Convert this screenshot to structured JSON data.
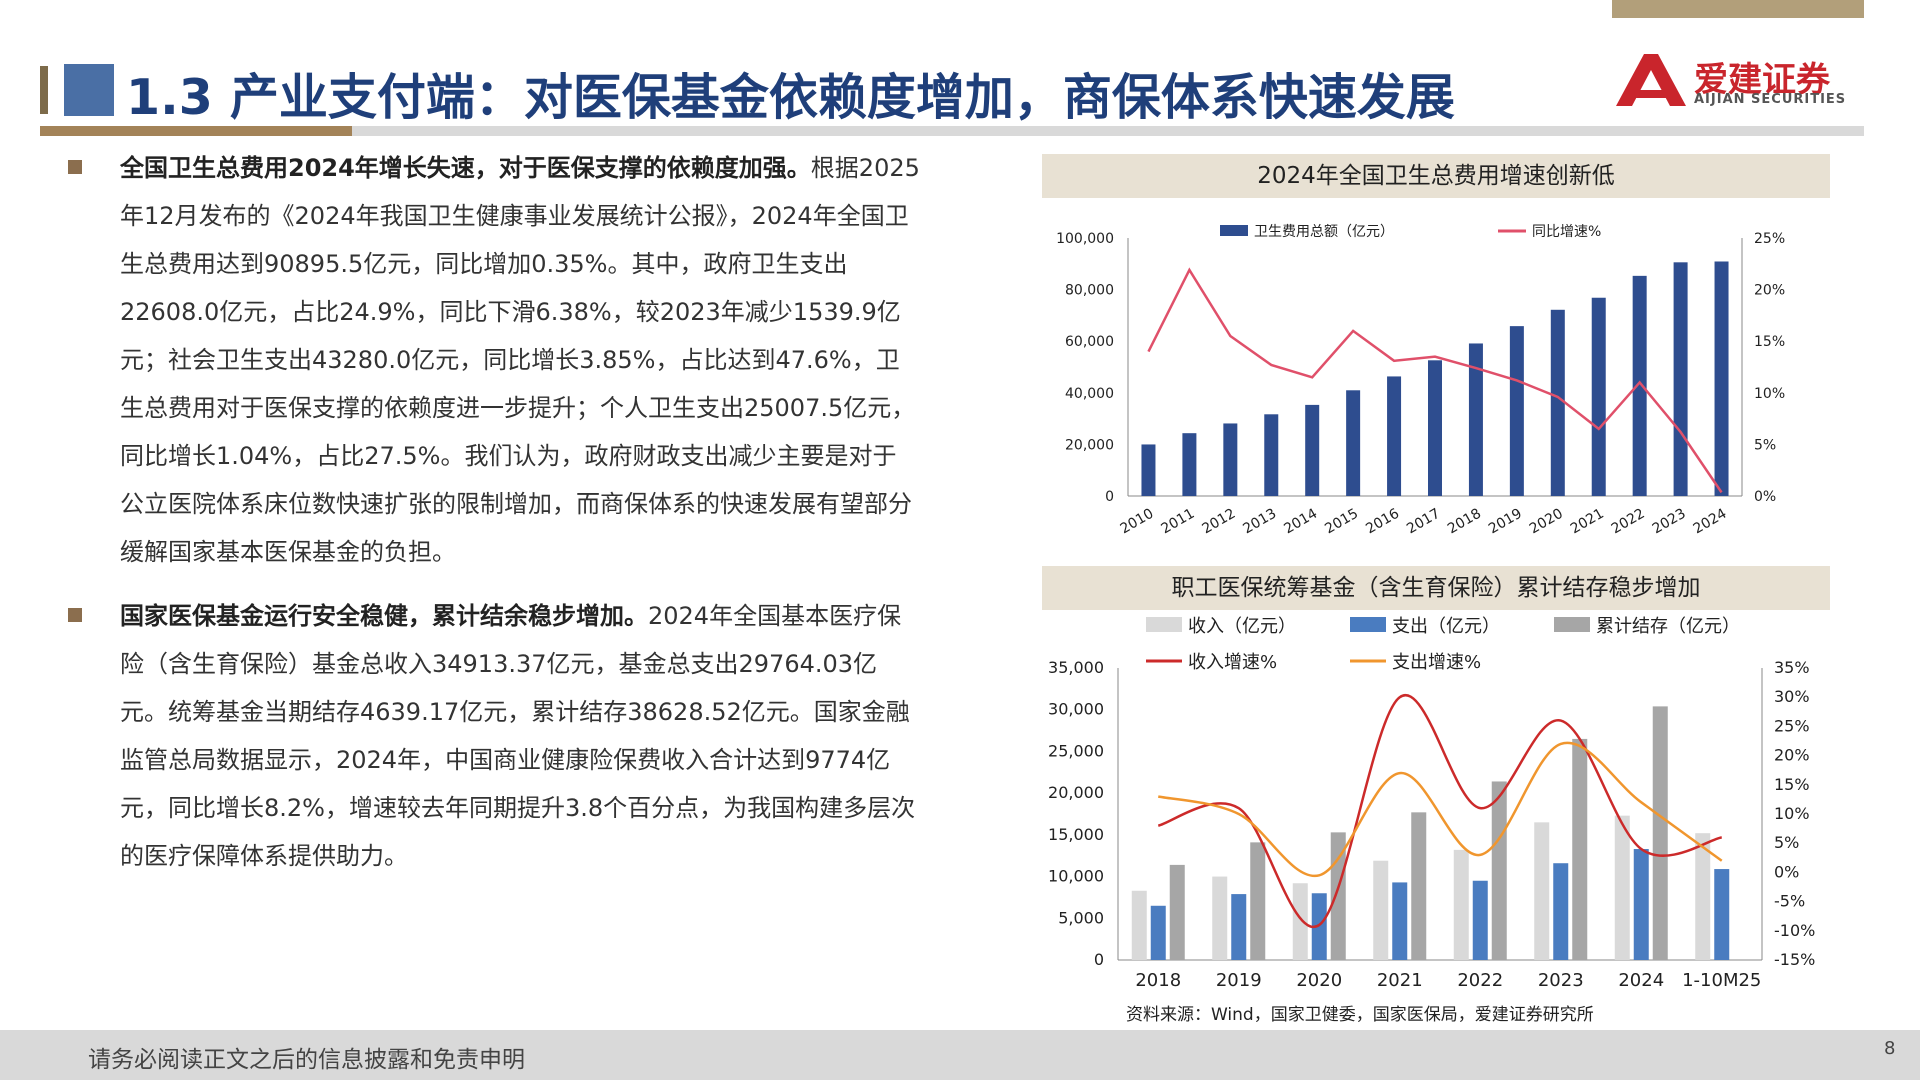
{
  "header": {
    "title": "1.3 产业支付端：对医保基金依赖度增加，商保体系快速发展",
    "logo_name": "爱建证券",
    "logo_en": "AIJIAN SECURITIES"
  },
  "body": {
    "p1_lead": "全国卫生总费用2024年增长失速，对于医保支撑的依赖度加强。",
    "p1_text": "根据2025年12月发布的《2024年我国卫生健康事业发展统计公报》，2024年全国卫生总费用达到90895.5亿元，同比增加0.35%。其中，政府卫生支出22608.0亿元，占比24.9%，同比下滑6.38%，较2023年减少1539.9亿元；社会卫生支出43280.0亿元，同比增长3.85%，占比达到47.6%，卫生总费用对于医保支撑的依赖度进一步提升；个人卫生支出25007.5亿元，同比增长1.04%，占比27.5%。我们认为，政府财政支出减少主要是对于公立医院体系床位数快速扩张的限制增加，而商保体系的快速发展有望部分缓解国家基本医保基金的负担。",
    "p2_lead": "国家医保基金运行安全稳健，累计结余稳步增加。",
    "p2_text": "2024年全国基本医疗保险（含生育保险）基金总收入34913.37亿元，基金总支出29764.03亿元。统筹基金当期结存4639.17亿元，累计结存38628.52亿元。国家金融监管总局数据显示，2024年，中国商业健康险保费收入合计达到9774亿元，同比增长8.2%，增速较去年同期提升3.8个百分点，为我国构建多层次的医疗保障体系提供助力。"
  },
  "chart_data": [
    {
      "type": "bar",
      "title": "2024年全国卫生总费用增速创新低",
      "categories": [
        "2010",
        "2011",
        "2012",
        "2013",
        "2014",
        "2015",
        "2016",
        "2017",
        "2018",
        "2019",
        "2020",
        "2021",
        "2022",
        "2023",
        "2024"
      ],
      "series": [
        {
          "name": "卫生费用总额（亿元）",
          "type": "bar",
          "axis": "left",
          "color": "#2e4d8f",
          "values": [
            19980,
            24346,
            28119,
            31669,
            35312,
            40975,
            46345,
            52598,
            59122,
            65841,
            72175,
            76845,
            85327,
            90576,
            90896
          ]
        },
        {
          "name": "同比增速%",
          "type": "line",
          "axis": "right",
          "color": "#e0506a",
          "values": [
            14,
            21.9,
            15.5,
            12.7,
            11.5,
            16.0,
            13.1,
            13.5,
            12.4,
            11.2,
            9.6,
            6.5,
            11.0,
            6.2,
            0.35
          ]
        }
      ],
      "y_left": {
        "min": 0,
        "max": 100000,
        "ticks": [
          "0",
          "20,000",
          "40,000",
          "60,000",
          "80,000",
          "100,000"
        ]
      },
      "y_right": {
        "min": 0,
        "max": 25,
        "ticks": [
          "0%",
          "5%",
          "10%",
          "15%",
          "20%",
          "25%"
        ]
      },
      "legend": "top"
    },
    {
      "type": "bar",
      "title": "职工医保统筹基金（含生育保险）累计结存稳步增加",
      "categories": [
        "2018",
        "2019",
        "2020",
        "2021",
        "2022",
        "2023",
        "2024",
        "1-10M25"
      ],
      "series": [
        {
          "name": "收入（亿元）",
          "type": "bar",
          "axis": "left",
          "color": "#d9d9d9",
          "values": [
            8300,
            10000,
            9200,
            11900,
            13200,
            16500,
            17300,
            15200
          ]
        },
        {
          "name": "支出（亿元）",
          "type": "bar",
          "axis": "left",
          "color": "#4a7cc0",
          "values": [
            6500,
            7900,
            8000,
            9300,
            9500,
            11600,
            13300,
            10900
          ]
        },
        {
          "name": "累计结存（亿元）",
          "type": "bar",
          "axis": "left",
          "color": "#a6a6a6",
          "values": [
            11400,
            14100,
            15300,
            17700,
            21400,
            26500,
            30400,
            null
          ]
        },
        {
          "name": "收入增速%",
          "type": "line",
          "axis": "right",
          "color": "#cc2a2a",
          "values": [
            8,
            11,
            -9,
            30,
            11,
            26,
            4,
            6
          ]
        },
        {
          "name": "支出增速%",
          "type": "line",
          "axis": "right",
          "color": "#f0962e",
          "values": [
            13,
            10,
            -0.5,
            17,
            3,
            22,
            12,
            2
          ]
        }
      ],
      "y_left": {
        "min": 0,
        "max": 35000,
        "ticks": [
          "0",
          "5,000",
          "10,000",
          "15,000",
          "20,000",
          "25,000",
          "30,000",
          "35,000"
        ]
      },
      "y_right": {
        "min": -15,
        "max": 35,
        "ticks": [
          "-15%",
          "-10%",
          "-5%",
          "0%",
          "5%",
          "10%",
          "15%",
          "20%",
          "25%",
          "30%",
          "35%"
        ]
      },
      "legend": "top"
    }
  ],
  "source": "资料来源：Wind，国家卫健委，国家医保局，爱建证券研究所",
  "footer": {
    "disclaimer": "请务必阅读正文之后的信息披露和免责申明",
    "page": "8"
  }
}
